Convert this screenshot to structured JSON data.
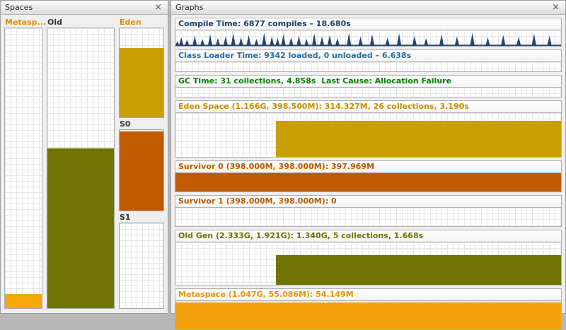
{
  "spaces": {
    "title": "Spaces",
    "close_label": "×",
    "metaspace": {
      "label": "Metasp...",
      "label_color": "#e09000",
      "bar_color": "#f5a80a",
      "fill_pct": 5
    },
    "old": {
      "label": "Old",
      "label_color": "#333333",
      "bar_color": "#6f7400",
      "fill_pct": 57
    },
    "eden": {
      "label": "Eden",
      "label_color": "#e09000",
      "bar_color": "#c89e00",
      "fill_pct": 78
    },
    "s0": {
      "label": "S0",
      "label_color": "#333333",
      "bar_color": "#c05a00",
      "fill_pct": 98
    },
    "s1": {
      "label": "S1",
      "label_color": "#333333",
      "bar_color": "#c05a00",
      "fill_pct": 0
    }
  },
  "graphs": {
    "title": "Graphs",
    "close_label": "×",
    "rows": [
      {
        "title": "Compile Time: 6877 compiles – 18.680s",
        "title_color": "#1b3a6b",
        "type": "spikes",
        "spike_color": "#24466e",
        "spikes": [
          [
            0.5,
            30
          ],
          [
            1.5,
            55
          ],
          [
            3,
            40
          ],
          [
            5,
            65
          ],
          [
            7,
            45
          ],
          [
            9,
            75
          ],
          [
            11,
            50
          ],
          [
            13,
            60
          ],
          [
            15,
            80
          ],
          [
            17,
            55
          ],
          [
            19,
            70
          ],
          [
            21,
            45
          ],
          [
            23,
            85
          ],
          [
            25,
            60
          ],
          [
            26.5,
            50
          ],
          [
            28,
            75
          ],
          [
            30,
            55
          ],
          [
            32,
            65
          ],
          [
            34,
            45
          ],
          [
            36,
            80
          ],
          [
            38,
            60
          ],
          [
            40,
            70
          ],
          [
            42,
            50
          ],
          [
            45,
            85
          ],
          [
            48,
            60
          ],
          [
            51,
            75
          ],
          [
            55,
            55
          ],
          [
            58,
            80
          ],
          [
            62,
            65
          ],
          [
            65,
            50
          ],
          [
            69,
            75
          ],
          [
            73,
            60
          ],
          [
            77,
            85
          ],
          [
            81,
            55
          ],
          [
            85,
            70
          ],
          [
            89,
            60
          ],
          [
            93,
            80
          ],
          [
            97,
            65
          ]
        ]
      },
      {
        "title": "Class Loader Time: 9342 loaded, 0 unloaded – 6.638s",
        "title_color": "#2a6b9c",
        "type": "empty"
      },
      {
        "title": "GC Time: 31 collections, 4.858s  Last Cause: Allocation Failure",
        "title_color": "#008000",
        "type": "empty"
      },
      {
        "title": "Eden Space (1.166G, 398.500M): 314.327M, 26 collections, 3.190s",
        "title_color": "#c09000",
        "type": "bar",
        "bar_color": "#c89e00",
        "left_pct": 26,
        "height_pct": 82
      },
      {
        "title": "Survivor 0 (398.000M, 398.000M): 397.969M",
        "title_color": "#b35900",
        "type": "bar",
        "bar_color": "#c05a00",
        "left_pct": 0,
        "height_pct": 100
      },
      {
        "title": "Survivor 1 (398.000M, 398.000M): 0",
        "title_color": "#b35900",
        "type": "empty"
      },
      {
        "title": "Old Gen (2.333G, 1.921G): 1.340G, 5 collections, 1.668s",
        "title_color": "#6b7000",
        "type": "bar",
        "bar_color": "#6f7400",
        "left_pct": 26,
        "height_pct": 70
      },
      {
        "title": "Metaspace (1.047G, 55.086M): 54.149M",
        "title_color": "#e8940a",
        "type": "bar",
        "bar_color": "#f2a20d",
        "left_pct": 0,
        "height_pct": 96
      }
    ]
  }
}
